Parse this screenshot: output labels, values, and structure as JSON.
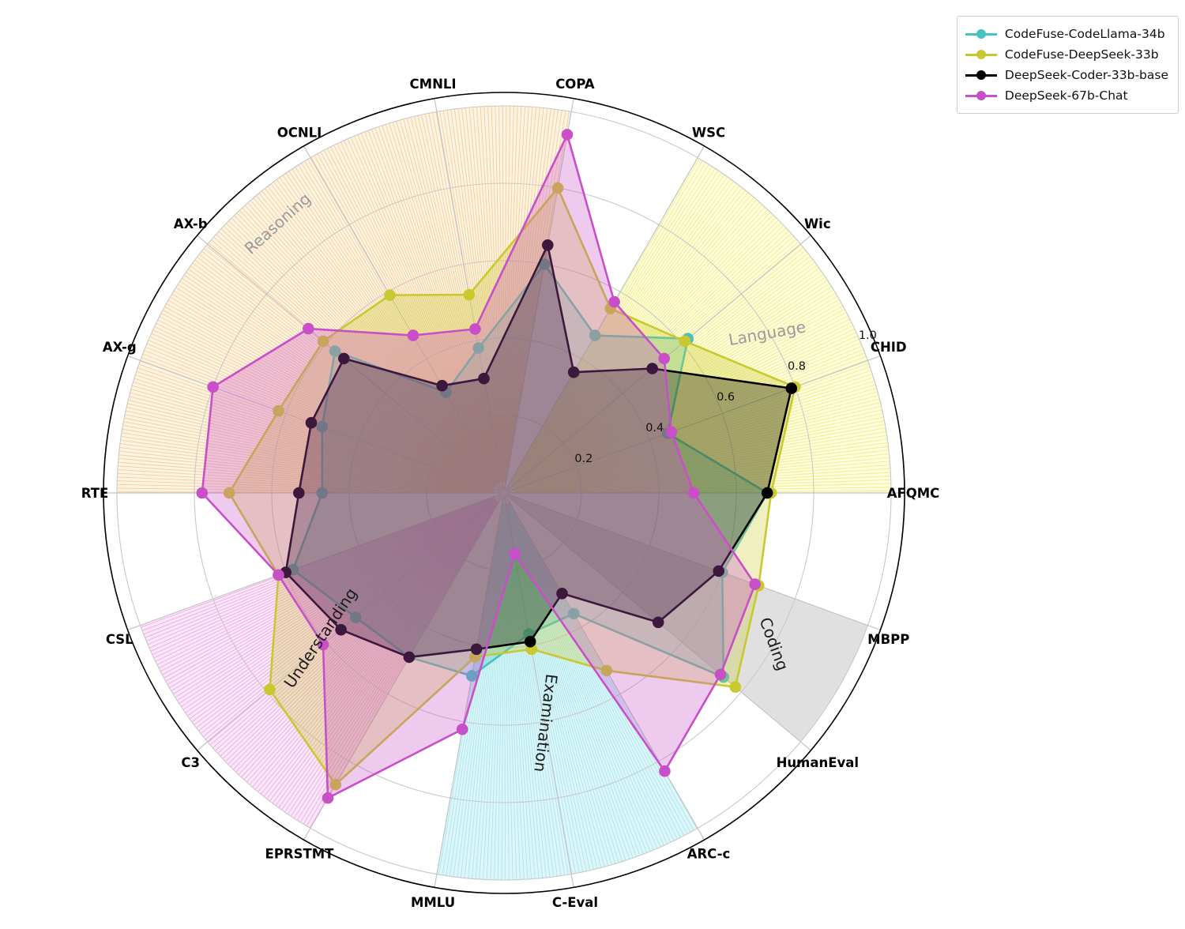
{
  "chart_data": {
    "type": "radar",
    "title": "",
    "rlim": [
      0,
      1.0
    ],
    "r_ticks": [
      "0.2",
      "0.4",
      "0.6",
      "0.8",
      "1.0"
    ],
    "r_tick_values": [
      0.2,
      0.4,
      0.6,
      0.8,
      1.0
    ],
    "grid": true,
    "categories": [
      "AFQMC",
      "CHID",
      "Wic",
      "WSC",
      "COPA",
      "CMNLI",
      "OCNLI",
      "AX-b",
      "AX-g",
      "RTE",
      "CSL",
      "C3",
      "EPRSTMT",
      "MMLU",
      "C-Eval",
      "ARC-c",
      "HumanEval",
      "MBPP"
    ],
    "angles_deg": [
      0,
      20,
      40,
      60,
      80,
      100,
      120,
      140,
      160,
      180,
      200,
      220,
      240,
      260,
      280,
      300,
      320,
      340
    ],
    "series": [
      {
        "name": "CodeFuse-CodeLlama-34b",
        "color": "#45c2c2",
        "values": [
          0.68,
          0.45,
          0.62,
          0.47,
          0.6,
          0.38,
          0.3,
          0.57,
          0.5,
          0.47,
          0.58,
          0.5,
          0.49,
          0.48,
          0.37,
          0.36,
          0.74,
          0.6
        ]
      },
      {
        "name": "CodeFuse-DeepSeek-33b",
        "color": "#c9c92f",
        "values": [
          0.69,
          0.8,
          0.61,
          0.55,
          0.8,
          0.52,
          0.59,
          0.61,
          0.62,
          0.71,
          0.62,
          0.79,
          0.87,
          0.43,
          0.41,
          0.53,
          0.78,
          0.7
        ]
      },
      {
        "name": "DeepSeek-Coder-33b-base",
        "color": "#000000",
        "values": [
          0.68,
          0.79,
          0.5,
          0.36,
          0.65,
          0.3,
          0.32,
          0.54,
          0.53,
          0.53,
          0.6,
          0.55,
          0.49,
          0.41,
          0.39,
          0.3,
          0.52,
          0.59
        ]
      },
      {
        "name": "DeepSeek-67b-Chat",
        "color": "#c94fc9",
        "values": [
          0.49,
          0.46,
          0.54,
          0.57,
          0.94,
          0.43,
          0.47,
          0.66,
          0.8,
          0.78,
          0.62,
          0.61,
          0.91,
          0.62,
          0.16,
          0.83,
          0.73,
          0.69
        ]
      }
    ],
    "fill_opacity": 0.3,
    "sectors": [
      {
        "label": "Language",
        "start_deg": 0,
        "end_deg": 60,
        "bg": "#fdfcdc",
        "hatch": "#f0ee8c",
        "label_color": "#9a9a9a",
        "label_angle_deg": 30.3,
        "label_r": 0.79,
        "label_rotate_deg": -10
      },
      {
        "label": "Reasoning",
        "start_deg": 80,
        "end_deg": 180,
        "bg": "#fdf3e2",
        "hatch": "#f5cf9a",
        "label_color": "#9a9a9a",
        "label_angle_deg": 130,
        "label_r": 0.895,
        "label_rotate_deg": -42
      },
      {
        "label": "Understanding",
        "start_deg": 200,
        "end_deg": 240,
        "bg": "#fbe7f9",
        "hatch": "#efaae4",
        "label_color": "#1c1c1c",
        "label_angle_deg": 219.6,
        "label_r": 0.6,
        "label_rotate_deg": -56
      },
      {
        "label": "Examination",
        "start_deg": 260,
        "end_deg": 300,
        "bg": "#def6f9",
        "hatch": "#a8e7ee",
        "label_color": "#1c1c1c",
        "label_angle_deg": 279,
        "label_r": 0.6,
        "label_rotate_deg": 97
      },
      {
        "label": "Coding",
        "start_deg": 320,
        "end_deg": 340,
        "bg": "#e0e0e0",
        "hatch": null,
        "label_color": "#1c1c1c",
        "label_angle_deg": 330,
        "label_r": 0.79,
        "label_rotate_deg": 70
      }
    ],
    "legend_position": "top-right",
    "colors": {
      "grid": "#c9c9c9",
      "spoke": "#c4c4c4",
      "outer_ring": "#000000",
      "tick_label": "#111111",
      "axis_label": "#000000",
      "legend_border": "#cccccc"
    }
  }
}
